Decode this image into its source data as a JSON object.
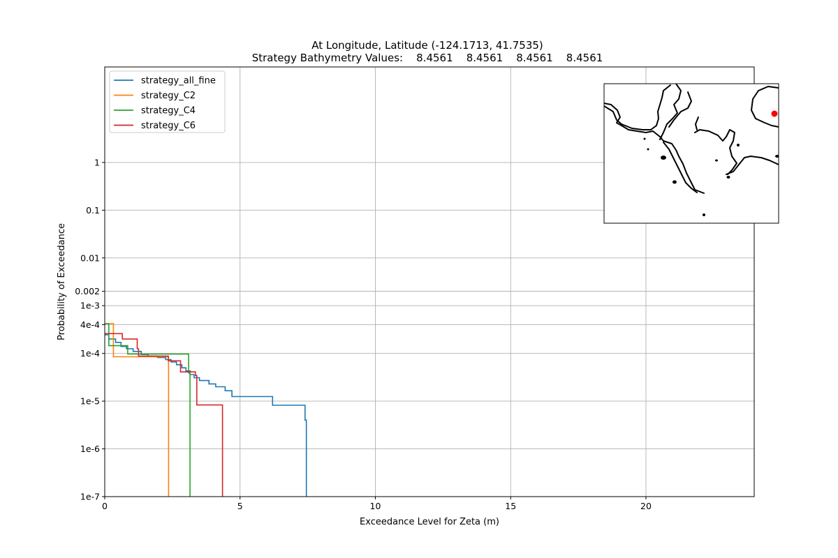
{
  "chart_data": {
    "type": "line",
    "title": "At Longitude, Latitude (-124.1713,  41.7535)",
    "subtitle": "Strategy Bathymetry Values:    8.4561    8.4561    8.4561    8.4561",
    "xlabel": "Exceedance Level for Zeta (m)",
    "ylabel": "Probability of Exceedance",
    "xlim": [
      0,
      24
    ],
    "ylim": [
      1e-07,
      100
    ],
    "y_scale": "log",
    "grid": true,
    "legend_position": "upper-left",
    "x_ticks": [
      {
        "value": 0,
        "label": "0"
      },
      {
        "value": 5,
        "label": "5"
      },
      {
        "value": 10,
        "label": "10"
      },
      {
        "value": 15,
        "label": "15"
      },
      {
        "value": 20,
        "label": "20"
      }
    ],
    "y_ticks": [
      {
        "value": 1,
        "label": "1"
      },
      {
        "value": 0.1,
        "label": "0.1"
      },
      {
        "value": 0.01,
        "label": "0.01"
      },
      {
        "value": 0.002,
        "label": "0.002"
      },
      {
        "value": 0.001,
        "label": "1e-3"
      },
      {
        "value": 0.0004,
        "label": "4e-4"
      },
      {
        "value": 0.0001,
        "label": "1e-4"
      },
      {
        "value": 1e-05,
        "label": "1e-5"
      },
      {
        "value": 1e-06,
        "label": "1e-6"
      },
      {
        "value": 1e-07,
        "label": "1e-7"
      }
    ],
    "series": [
      {
        "name": "strategy_all_fine",
        "color": "#1f77b4",
        "step_points": [
          [
            0,
            0.000245
          ],
          [
            0.15,
            0.0002
          ],
          [
            0.4,
            0.00017
          ],
          [
            0.6,
            0.00014
          ],
          [
            0.8,
            0.000125
          ],
          [
            1.05,
            0.00011
          ],
          [
            1.35,
            9.5e-05
          ],
          [
            1.6,
            8.8e-05
          ],
          [
            1.95,
            8.2e-05
          ],
          [
            2.25,
            7.4e-05
          ],
          [
            2.45,
            6.6e-05
          ],
          [
            2.65,
            5.8e-05
          ],
          [
            2.85,
            5e-05
          ],
          [
            3.0,
            4.3e-05
          ],
          [
            3.15,
            3.6e-05
          ],
          [
            3.3,
            3.1e-05
          ],
          [
            3.5,
            2.7e-05
          ],
          [
            3.85,
            2.3e-05
          ],
          [
            4.1,
            2e-05
          ],
          [
            4.45,
            1.65e-05
          ],
          [
            4.7,
            1.25e-05
          ],
          [
            6.2,
            8.2e-06
          ],
          [
            7.4,
            4e-06
          ],
          [
            7.45,
            1e-07
          ]
        ]
      },
      {
        "name": "strategy_C2",
        "color": "#ff7f0e",
        "step_points": [
          [
            0,
            0.00042
          ],
          [
            0.32,
            8.5e-05
          ],
          [
            2.35,
            6.4e-05
          ],
          [
            2.36,
            1e-07
          ]
        ]
      },
      {
        "name": "strategy_C4",
        "color": "#2ca02c",
        "step_points": [
          [
            0,
            0.00042
          ],
          [
            0.15,
            0.000145
          ],
          [
            0.85,
            9.7e-05
          ],
          [
            3.1,
            3.9e-05
          ],
          [
            3.15,
            1e-07
          ]
        ]
      },
      {
        "name": "strategy_C6",
        "color": "#d62728",
        "step_points": [
          [
            0,
            0.00026
          ],
          [
            0.65,
            0.0002
          ],
          [
            1.2,
            0.000125
          ],
          [
            1.25,
            8.8e-05
          ],
          [
            2.35,
            7e-05
          ],
          [
            2.8,
            4.1e-05
          ],
          [
            3.35,
            3.45e-05
          ],
          [
            3.4,
            8.3e-06
          ],
          [
            4.35,
            1e-07
          ]
        ]
      }
    ],
    "inset_map": {
      "marker_color": "#ff0000",
      "coastline_color": "#000000"
    }
  }
}
